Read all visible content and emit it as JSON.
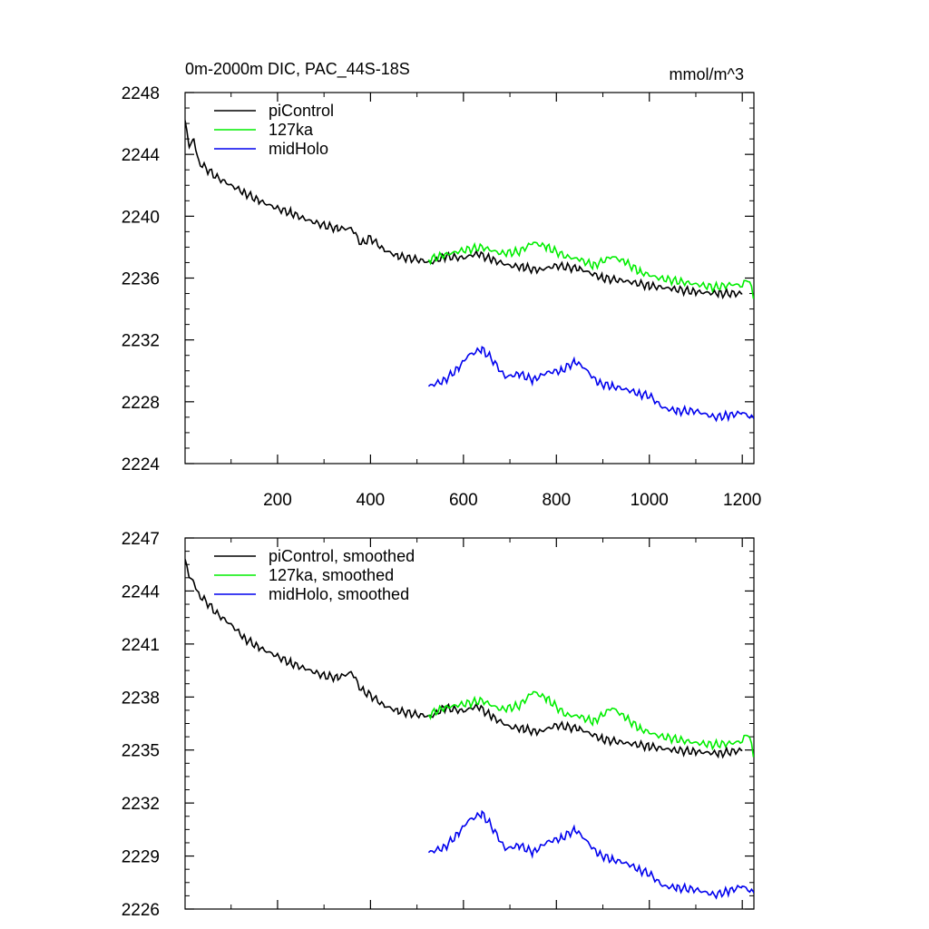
{
  "chart_data": [
    {
      "type": "line",
      "title": "0m-2000m DIC, PAC_44S-18S",
      "units": "mmol/m^3",
      "xlim": [
        1,
        1225
      ],
      "ylim": [
        2224,
        2248
      ],
      "x_ticks": [
        200,
        400,
        600,
        800,
        1000,
        1200
      ],
      "x_tick_labels": [
        "200",
        "400",
        "600",
        "800",
        "1000",
        "1200"
      ],
      "y_ticks": [
        2224,
        2228,
        2232,
        2236,
        2240,
        2244,
        2248
      ],
      "y_tick_labels": [
        "2224",
        "2228",
        "2232",
        "2236",
        "2240",
        "2244",
        "2248"
      ],
      "legend_position": "top-left",
      "series": [
        {
          "name": "piControl",
          "label": "piControl",
          "color": "#000000",
          "x": [
            1,
            10,
            20,
            30,
            50,
            70,
            100,
            130,
            160,
            200,
            230,
            260,
            300,
            330,
            360,
            380,
            400,
            430,
            460,
            500,
            530,
            560,
            600,
            630,
            660,
            700,
            730,
            760,
            800,
            850,
            900,
            950,
            1000,
            1050,
            1100,
            1150,
            1200
          ],
          "y": [
            2246.2,
            2244.5,
            2245.0,
            2243.5,
            2243.0,
            2242.5,
            2242.0,
            2241.5,
            2241.0,
            2240.5,
            2240.2,
            2239.8,
            2239.4,
            2239.2,
            2239.2,
            2238.2,
            2238.6,
            2237.8,
            2237.4,
            2237.2,
            2237.0,
            2237.4,
            2237.3,
            2237.6,
            2237.2,
            2236.8,
            2236.7,
            2236.5,
            2236.8,
            2236.6,
            2236.0,
            2235.8,
            2235.5,
            2235.3,
            2235.1,
            2235.0,
            2235.0
          ]
        },
        {
          "name": "127ka",
          "label": "127ka",
          "color": "#00ee00",
          "x": [
            525,
            560,
            600,
            640,
            680,
            720,
            750,
            780,
            820,
            850,
            880,
            920,
            950,
            980,
            1020,
            1060,
            1100,
            1140,
            1180,
            1200,
            1212,
            1225
          ],
          "y": [
            2237.2,
            2237.5,
            2237.8,
            2238.0,
            2237.6,
            2237.7,
            2238.3,
            2238.0,
            2237.4,
            2237.2,
            2236.8,
            2237.4,
            2237.0,
            2236.4,
            2236.0,
            2235.8,
            2235.6,
            2235.4,
            2235.6,
            2235.5,
            2236.0,
            2234.8
          ]
        },
        {
          "name": "midHolo",
          "label": "midHolo",
          "color": "#0000ee",
          "x": [
            525,
            560,
            590,
            610,
            640,
            660,
            690,
            720,
            750,
            780,
            810,
            840,
            860,
            890,
            920,
            950,
            980,
            1000,
            1030,
            1060,
            1100,
            1140,
            1170,
            1200,
            1225
          ],
          "y": [
            2229.0,
            2229.4,
            2230.2,
            2231.0,
            2231.4,
            2230.8,
            2229.6,
            2229.8,
            2229.4,
            2229.9,
            2230.0,
            2230.6,
            2230.2,
            2229.2,
            2229.0,
            2228.8,
            2228.5,
            2228.4,
            2227.6,
            2227.4,
            2227.4,
            2227.0,
            2227.1,
            2227.3,
            2226.9
          ]
        }
      ]
    },
    {
      "type": "line",
      "title": "",
      "xlim": [
        1,
        1225
      ],
      "ylim": [
        2226,
        2247
      ],
      "x_ticks": [
        200,
        400,
        600,
        800,
        1000,
        1200
      ],
      "x_tick_labels": [],
      "y_ticks": [
        2226,
        2229,
        2232,
        2235,
        2238,
        2241,
        2244,
        2247
      ],
      "y_tick_labels": [
        "2226",
        "2229",
        "2232",
        "2235",
        "2238",
        "2241",
        "2244",
        "2247"
      ],
      "legend_position": "top-left",
      "series": [
        {
          "name": "piControl",
          "label": "piControl, smoothed",
          "color": "#000000",
          "x": [
            1,
            10,
            20,
            30,
            50,
            70,
            100,
            130,
            160,
            200,
            230,
            260,
            300,
            330,
            360,
            380,
            400,
            430,
            460,
            500,
            530,
            560,
            600,
            630,
            660,
            700,
            730,
            760,
            800,
            850,
            900,
            950,
            1000,
            1050,
            1100,
            1150,
            1200
          ],
          "y": [
            2245.8,
            2244.8,
            2244.5,
            2243.8,
            2243.3,
            2242.7,
            2242.1,
            2241.3,
            2240.8,
            2240.3,
            2239.9,
            2239.6,
            2239.2,
            2239.1,
            2239.4,
            2238.4,
            2238.1,
            2237.5,
            2237.2,
            2237.0,
            2236.9,
            2237.4,
            2237.2,
            2237.5,
            2236.9,
            2236.3,
            2236.2,
            2236.0,
            2236.4,
            2236.2,
            2235.6,
            2235.4,
            2235.2,
            2235.0,
            2234.9,
            2234.8,
            2235.0
          ]
        },
        {
          "name": "127ka",
          "label": "127ka, smoothed",
          "color": "#00ee00",
          "x": [
            525,
            560,
            600,
            640,
            680,
            720,
            750,
            780,
            820,
            850,
            880,
            920,
            950,
            980,
            1020,
            1060,
            1100,
            1140,
            1180,
            1200,
            1212,
            1225
          ],
          "y": [
            2237.0,
            2237.4,
            2237.6,
            2237.8,
            2237.3,
            2237.5,
            2238.3,
            2237.9,
            2237.0,
            2236.9,
            2236.6,
            2237.4,
            2236.8,
            2236.2,
            2235.8,
            2235.6,
            2235.4,
            2235.3,
            2235.4,
            2235.5,
            2236.0,
            2234.7
          ]
        },
        {
          "name": "midHolo",
          "label": "midHolo, smoothed",
          "color": "#0000ee",
          "x": [
            525,
            560,
            590,
            610,
            640,
            660,
            690,
            720,
            750,
            780,
            810,
            840,
            860,
            890,
            920,
            950,
            980,
            1000,
            1030,
            1060,
            1100,
            1140,
            1170,
            1200,
            1225
          ],
          "y": [
            2229.2,
            2229.5,
            2230.3,
            2231.0,
            2231.4,
            2230.7,
            2229.4,
            2229.6,
            2229.2,
            2229.8,
            2230.0,
            2230.5,
            2230.0,
            2229.1,
            2228.8,
            2228.6,
            2228.2,
            2228.0,
            2227.3,
            2227.2,
            2227.1,
            2226.8,
            2227.0,
            2227.3,
            2226.9
          ]
        }
      ]
    }
  ]
}
